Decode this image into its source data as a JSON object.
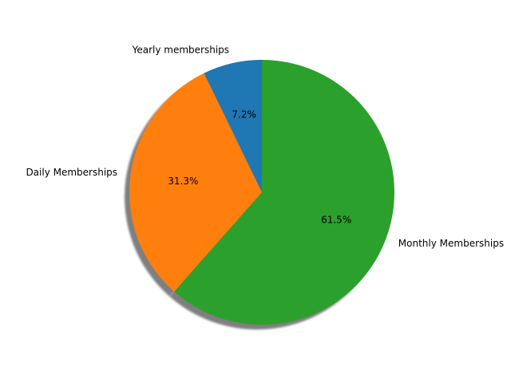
{
  "chart_data": {
    "type": "pie",
    "title": "",
    "start_angle_deg": 90,
    "direction": "counterclockwise",
    "shadow": true,
    "slices": [
      {
        "label": "Yearly memberships",
        "value": 7.2,
        "pct_label": "7.2%",
        "color": "#1f77b4"
      },
      {
        "label": "Daily Memberships",
        "value": 31.3,
        "pct_label": "31.3%",
        "color": "#ff7f0e"
      },
      {
        "label": "Monthly Memberships",
        "value": 61.5,
        "pct_label": "61.5%",
        "color": "#2ca02c"
      }
    ]
  }
}
